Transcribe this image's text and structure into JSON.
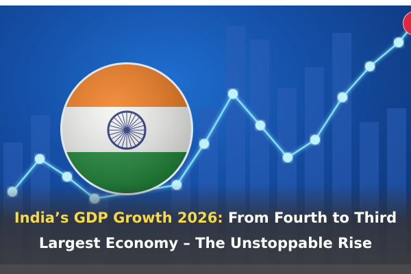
{
  "headline": {
    "highlight": "India’s GDP Growth 2026:",
    "rest_line1": " From Fourth to Third",
    "line2": "Largest Economy – The Unstoppable Rise"
  },
  "colors": {
    "background": "#1550a8",
    "highlight": "#f5d94a",
    "line": "#6fd8ff",
    "badge": "#e3263b"
  },
  "icons": [
    "india-flag-icon",
    "growth-line-graphic",
    "logo-badge"
  ]
}
